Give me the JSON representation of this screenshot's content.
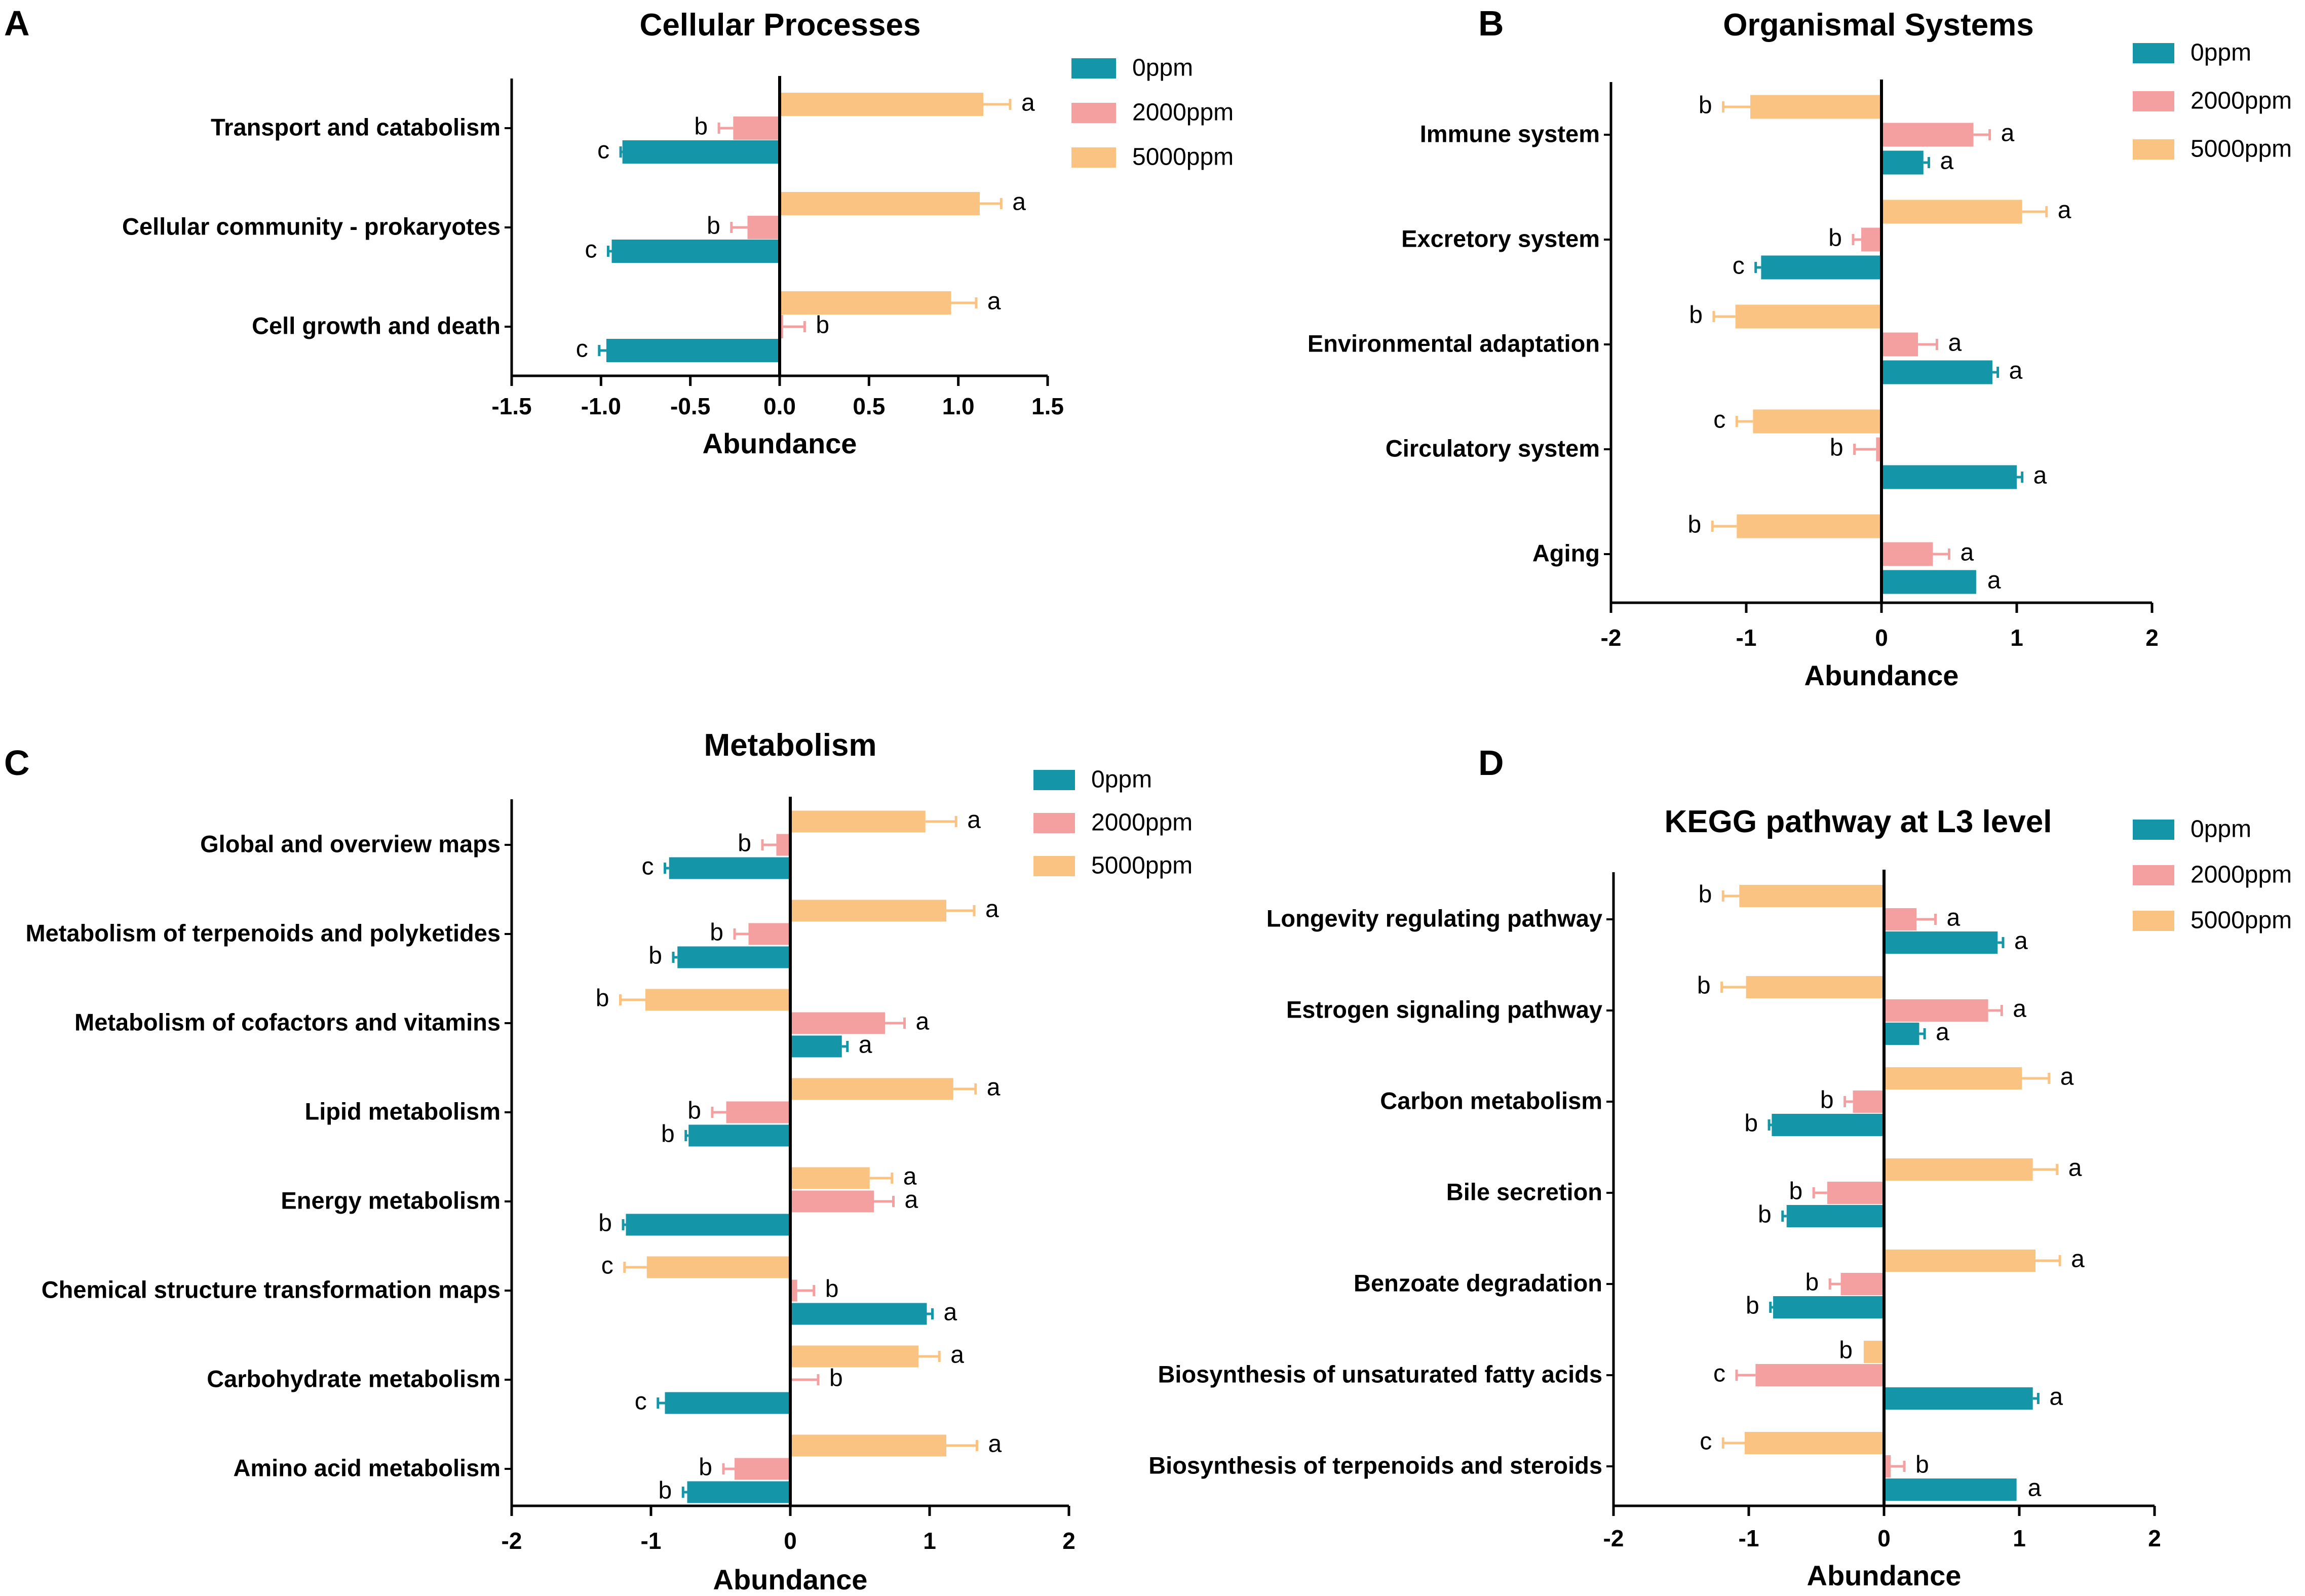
{
  "colors": {
    "0ppm": "#1496a8",
    "2000ppm": "#f5a0a0",
    "5000ppm": "#fac382"
  },
  "chart_data": [
    {
      "panel": "A",
      "type": "bar",
      "orientation": "horizontal",
      "title": "Cellular Processes",
      "xlabel": "Abundance",
      "xlim": [
        -1.5,
        1.5
      ],
      "ticks": [
        -1.5,
        -1.0,
        -0.5,
        0.0,
        0.5,
        1.0,
        1.5
      ],
      "tick_labels": [
        "-1.5",
        "-1.0",
        "-0.5",
        "0.0",
        "0.5",
        "1.0",
        "1.5"
      ],
      "legend": [
        "0ppm",
        "2000ppm",
        "5000ppm"
      ],
      "legend_position": "top-right",
      "categories": [
        "Transport and catabolism",
        "Cellular community - prokaryotes",
        "Cell growth and death"
      ],
      "series": [
        {
          "name": "5000ppm",
          "values": [
            1.14,
            1.12,
            0.96
          ],
          "errors": [
            0.15,
            0.12,
            0.14
          ],
          "letters": [
            "a",
            "a",
            "a"
          ]
        },
        {
          "name": "2000ppm",
          "values": [
            -0.26,
            -0.18,
            0.02
          ],
          "errors": [
            0.08,
            0.09,
            0.12
          ],
          "letters": [
            "b",
            "b",
            "b"
          ]
        },
        {
          "name": "0ppm",
          "values": [
            -0.88,
            -0.94,
            -0.97
          ],
          "errors": [
            0.01,
            0.02,
            0.04
          ],
          "letters": [
            "c",
            "c",
            "c"
          ]
        }
      ]
    },
    {
      "panel": "B",
      "type": "bar",
      "orientation": "horizontal",
      "title": "Organismal Systems",
      "xlabel": "Abundance",
      "xlim": [
        -2,
        2
      ],
      "ticks": [
        -2,
        -1,
        0,
        1,
        2
      ],
      "tick_labels": [
        "-2",
        "-1",
        "0",
        "1",
        "2"
      ],
      "legend": [
        "0ppm",
        "2000ppm",
        "5000ppm"
      ],
      "legend_position": "top-right",
      "categories": [
        "Immune system",
        "Excretory system",
        "Environmental adaptation",
        "Circulatory system",
        "Aging"
      ],
      "series": [
        {
          "name": "5000ppm",
          "values": [
            -0.97,
            1.04,
            -1.08,
            -0.95,
            -1.07
          ],
          "errors": [
            0.2,
            0.18,
            0.16,
            0.12,
            0.18
          ],
          "letters": [
            "b",
            "a",
            "b",
            "c",
            "b"
          ]
        },
        {
          "name": "2000ppm",
          "values": [
            0.68,
            -0.15,
            0.27,
            -0.04,
            0.38
          ],
          "errors": [
            0.12,
            0.06,
            0.14,
            0.16,
            0.12
          ],
          "letters": [
            "a",
            "b",
            "a",
            "b",
            "a"
          ]
        },
        {
          "name": "0ppm",
          "values": [
            0.31,
            -0.89,
            0.82,
            1.0,
            0.7
          ],
          "errors": [
            0.04,
            0.04,
            0.04,
            0.04,
            0.0
          ],
          "letters": [
            "a",
            "c",
            "a",
            "a",
            "a"
          ]
        }
      ]
    },
    {
      "panel": "C",
      "type": "bar",
      "orientation": "horizontal",
      "title": "Metabolism",
      "xlabel": "Abundance",
      "xlim": [
        -2,
        2
      ],
      "ticks": [
        -2,
        -1,
        0,
        1,
        2
      ],
      "tick_labels": [
        "-2",
        "-1",
        "0",
        "1",
        "2"
      ],
      "legend": [
        "0ppm",
        "2000ppm",
        "5000ppm"
      ],
      "legend_position": "top-right",
      "categories": [
        "Global and overview maps",
        "Metabolism of terpenoids and polyketides",
        "Metabolism of cofactors and vitamins",
        "Lipid metabolism",
        "Energy metabolism",
        "Chemical structure transformation maps",
        "Carbohydrate metabolism",
        "Amino acid metabolism"
      ],
      "series": [
        {
          "name": "5000ppm",
          "values": [
            0.97,
            1.12,
            -1.04,
            1.17,
            0.57,
            -1.03,
            0.92,
            1.12
          ],
          "errors": [
            0.22,
            0.2,
            0.18,
            0.16,
            0.16,
            0.16,
            0.15,
            0.22
          ],
          "letters": [
            "a",
            "a",
            "b",
            "a",
            "a",
            "c",
            "a",
            "a"
          ]
        },
        {
          "name": "2000ppm",
          "values": [
            -0.1,
            -0.3,
            0.68,
            -0.46,
            0.6,
            0.05,
            0.0,
            -0.4
          ],
          "errors": [
            0.1,
            0.1,
            0.14,
            0.1,
            0.14,
            0.12,
            0.2,
            0.08
          ],
          "letters": [
            "b",
            "b",
            "a",
            "b",
            "a",
            "b",
            "b",
            "b"
          ]
        },
        {
          "name": "0ppm",
          "values": [
            -0.87,
            -0.81,
            0.37,
            -0.73,
            -1.18,
            0.98,
            -0.9,
            -0.74
          ],
          "errors": [
            0.03,
            0.03,
            0.04,
            0.02,
            0.02,
            0.04,
            0.05,
            0.03
          ],
          "letters": [
            "c",
            "b",
            "a",
            "b",
            "b",
            "a",
            "c",
            "b"
          ]
        }
      ]
    },
    {
      "panel": "D",
      "type": "bar",
      "orientation": "horizontal",
      "title": "KEGG pathway at L3 level",
      "xlabel": "Abundance",
      "xlim": [
        -2,
        2
      ],
      "ticks": [
        -2,
        -1,
        0,
        1,
        2
      ],
      "tick_labels": [
        "-2",
        "-1",
        "0",
        "1",
        "2"
      ],
      "legend": [
        "0ppm",
        "2000ppm",
        "5000ppm"
      ],
      "legend_position": "top-right",
      "categories": [
        "Longevity regulating pathway",
        "Estrogen signaling pathway",
        "Carbon metabolism",
        "Bile secretion",
        "Benzoate degradation",
        "Biosynthesis of unsaturated fatty acids",
        "Biosynthesis of terpenoids and steroids"
      ],
      "series": [
        {
          "name": "5000ppm",
          "values": [
            -1.07,
            -1.02,
            1.02,
            1.1,
            1.12,
            -0.15,
            -1.03
          ],
          "errors": [
            0.12,
            0.18,
            0.2,
            0.18,
            0.18,
            0.0,
            0.16
          ],
          "letters": [
            "b",
            "b",
            "a",
            "a",
            "a",
            "b",
            "c"
          ]
        },
        {
          "name": "2000ppm",
          "values": [
            0.24,
            0.77,
            -0.23,
            -0.42,
            -0.32,
            -0.95,
            0.05
          ],
          "errors": [
            0.14,
            0.1,
            0.06,
            0.1,
            0.08,
            0.14,
            0.1
          ],
          "letters": [
            "a",
            "a",
            "b",
            "b",
            "b",
            "c",
            "b"
          ]
        },
        {
          "name": "0ppm",
          "values": [
            0.84,
            0.26,
            -0.83,
            -0.72,
            -0.82,
            1.1,
            0.98
          ],
          "errors": [
            0.04,
            0.04,
            0.02,
            0.03,
            0.02,
            0.04,
            0.0
          ],
          "letters": [
            "a",
            "a",
            "b",
            "b",
            "b",
            "a",
            "a"
          ]
        }
      ]
    }
  ]
}
